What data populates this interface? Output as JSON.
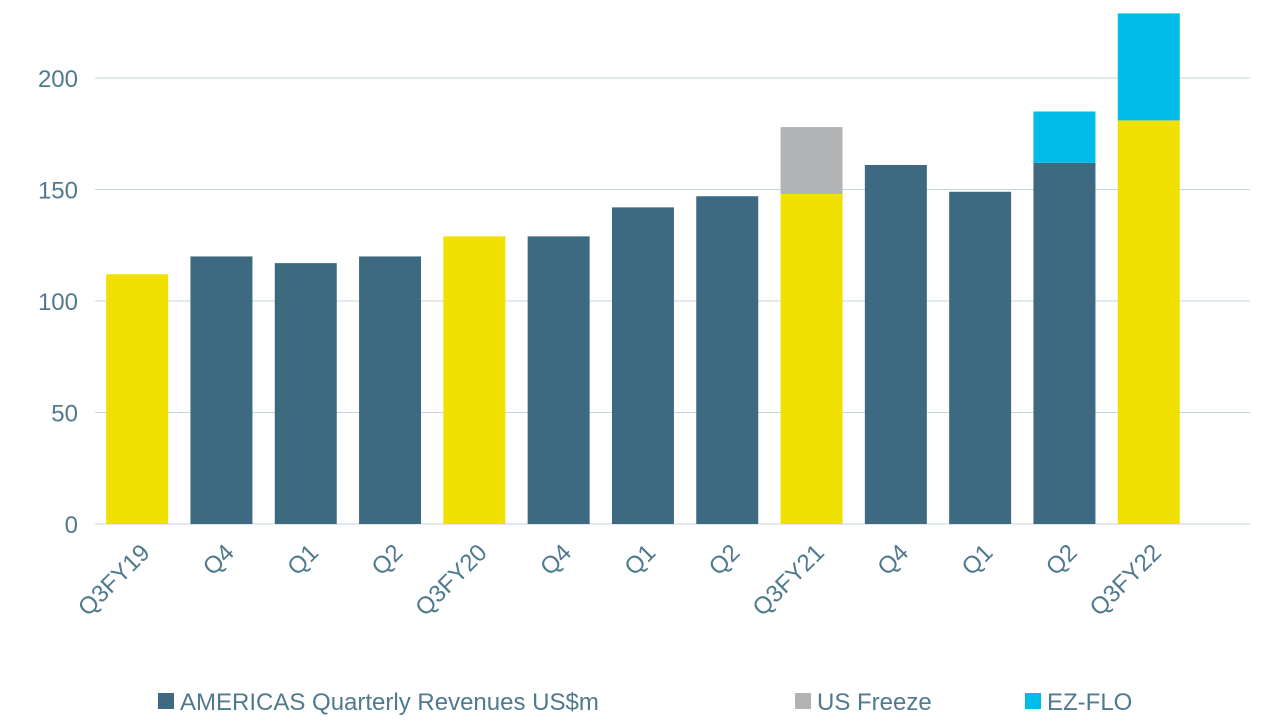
{
  "chart_data": {
    "type": "stacked_bar",
    "categories": [
      "Q3FY19",
      "Q4",
      "Q1",
      "Q2",
      "Q3FY20",
      "Q4",
      "Q1",
      "Q2",
      "Q3FY21",
      "Q4",
      "Q1",
      "Q2",
      "Q3FY22"
    ],
    "series": [
      {
        "name": "AMERICAS Quarterly Revenues US$m",
        "color": "#3d6a80",
        "colors": [
          "#f0e100",
          "#3d6a80",
          "#3d6a80",
          "#3d6a80",
          "#f0e100",
          "#3d6a80",
          "#3d6a80",
          "#3d6a80",
          "#f0e100",
          "#3d6a80",
          "#3d6a80",
          "#3d6a80",
          "#f0e100"
        ],
        "values": [
          112,
          120,
          117,
          120,
          129,
          129,
          142,
          147,
          148,
          161,
          149,
          162,
          181
        ]
      },
      {
        "name": "US Freeze",
        "color": "#b1b3b4",
        "values": [
          null,
          null,
          null,
          null,
          null,
          null,
          null,
          null,
          30,
          null,
          null,
          null,
          null
        ]
      },
      {
        "name": "EZ-FLO",
        "color": "#00bce8",
        "values": [
          null,
          null,
          null,
          null,
          null,
          null,
          null,
          null,
          null,
          null,
          null,
          23,
          48
        ]
      }
    ],
    "ylim": [
      0,
      235
    ],
    "yticks": [
      0,
      50,
      100,
      150,
      200
    ],
    "grid": true,
    "legend": "bottom"
  }
}
